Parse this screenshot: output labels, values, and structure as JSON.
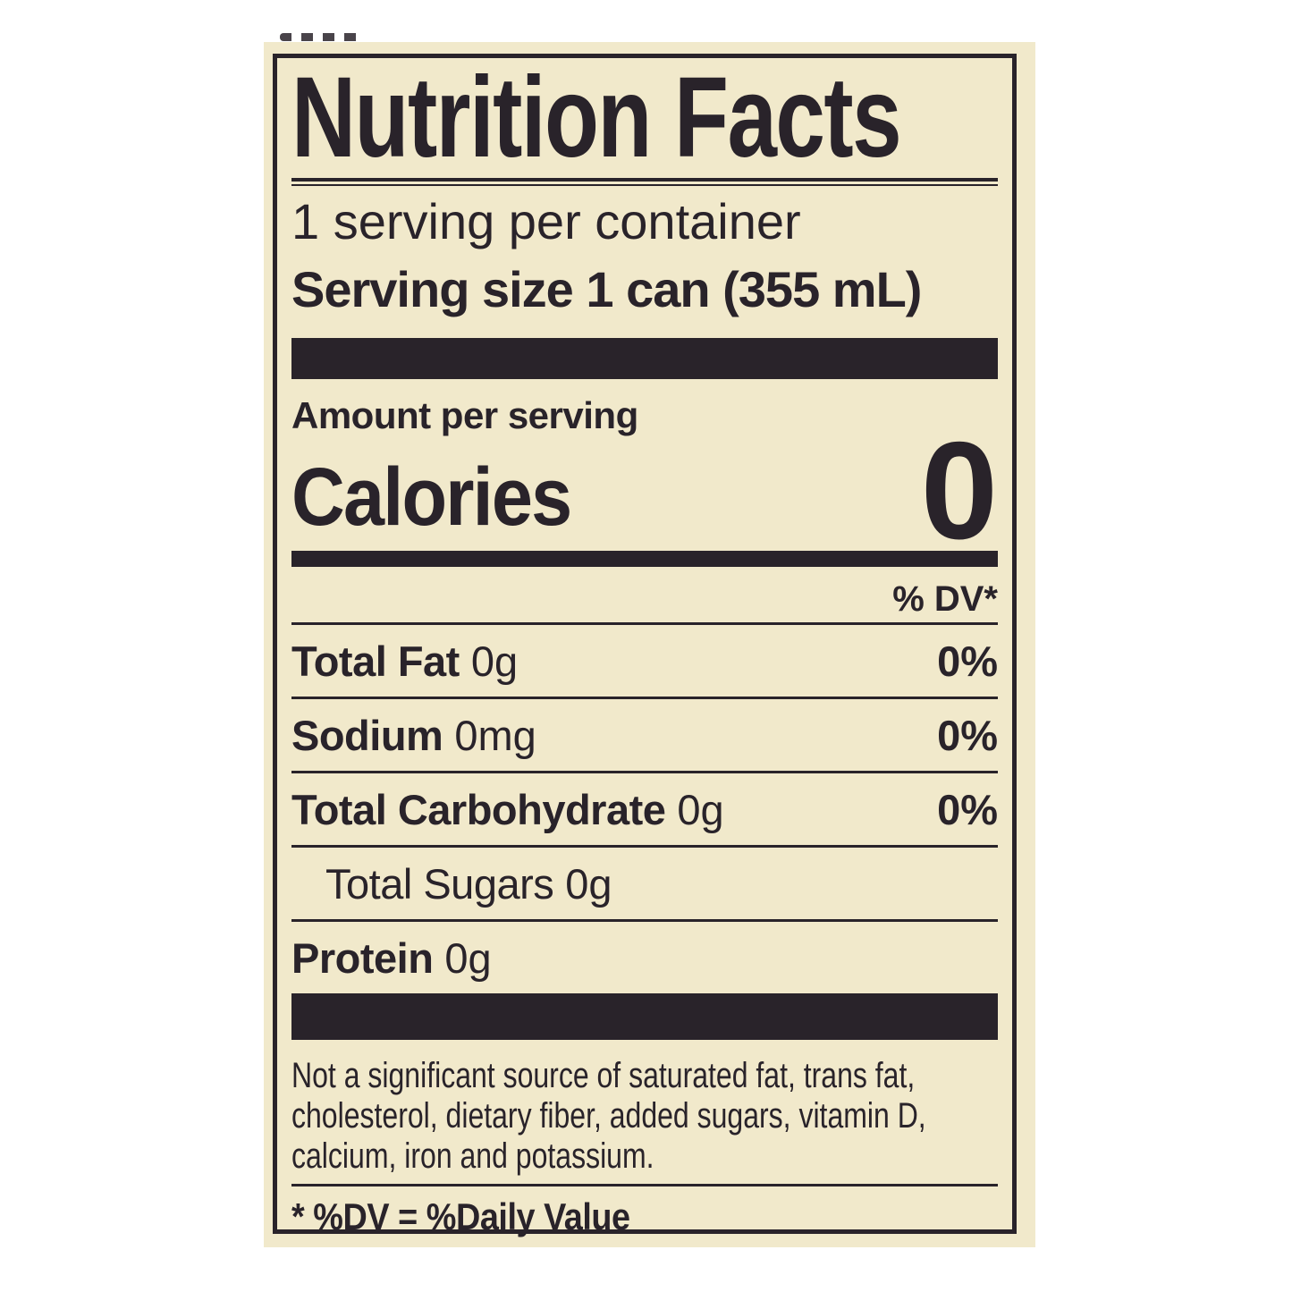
{
  "label": {
    "title": "Nutrition Facts",
    "servings_per_container": "1 serving per container",
    "serving_size": "Serving size 1 can (355 mL)",
    "amount_per_serving": "Amount per serving",
    "calories_label": "Calories",
    "calories_value": "0",
    "dv_header": "% DV*",
    "rows": [
      {
        "name": "Total Fat",
        "amount": "0g",
        "dv": "0%"
      },
      {
        "name": "Sodium",
        "amount": "0mg",
        "dv": "0%"
      },
      {
        "name": "Total Carbohydrate",
        "amount": "0g",
        "dv": "0%"
      },
      {
        "name": "Total Sugars",
        "amount": "0g",
        "dv": ""
      },
      {
        "name": "Protein",
        "amount": "0g",
        "dv": ""
      }
    ],
    "footnote_lines": [
      "Not a significant source of saturated fat, trans fat,",
      "cholesterol, dietary fiber, added sugars, vitamin D,",
      "calcium, iron and potassium."
    ],
    "dv_note": "* %DV = %Daily Value"
  },
  "colors": {
    "page_bg": "#ffffff",
    "label_bg": "#f1e9cb",
    "ink": "#29232a"
  }
}
